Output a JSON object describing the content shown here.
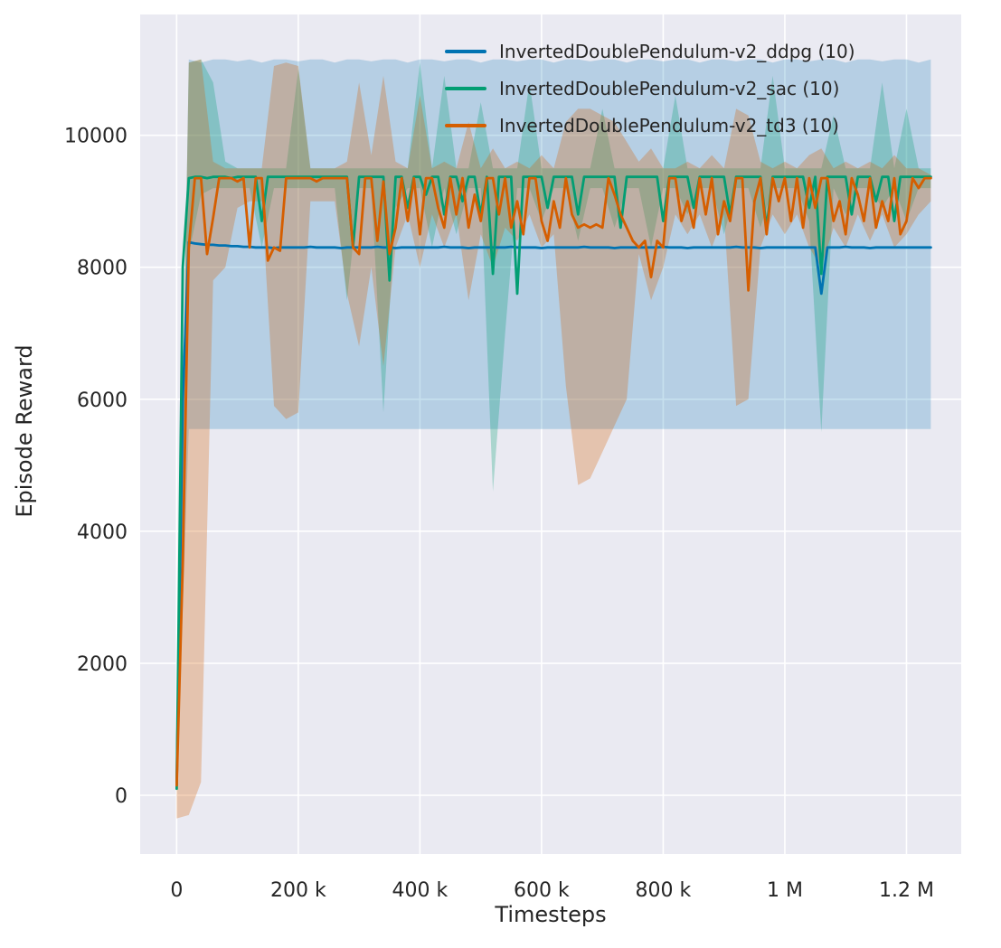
{
  "figure": {
    "background": "#ffffff",
    "plot_bg": "#eaeaf2",
    "grid_color": "#ffffff",
    "text_color": "#262626"
  },
  "chart_data": {
    "type": "line",
    "title": "",
    "xlabel": "Timesteps",
    "ylabel": "Episode Reward",
    "grid": true,
    "legend_position": "upper center",
    "xlim": [
      -60000,
      1290000
    ],
    "ylim": [
      -890,
      11830
    ],
    "x_ticks": [
      {
        "v": 0,
        "label": "0"
      },
      {
        "v": 200000,
        "label": "200 k"
      },
      {
        "v": 400000,
        "label": "400 k"
      },
      {
        "v": 600000,
        "label": "600 k"
      },
      {
        "v": 800000,
        "label": "800 k"
      },
      {
        "v": 1000000,
        "label": "1 M"
      },
      {
        "v": 1200000,
        "label": "1.2 M"
      }
    ],
    "y_ticks": [
      {
        "v": 0,
        "label": "0"
      },
      {
        "v": 2000,
        "label": "2000"
      },
      {
        "v": 4000,
        "label": "4000"
      },
      {
        "v": 6000,
        "label": "6000"
      },
      {
        "v": 8000,
        "label": "8000"
      },
      {
        "v": 10000,
        "label": "10000"
      }
    ],
    "series": [
      {
        "name": "InvertedDoublePendulum-v2_ddpg (10)",
        "color": "#0173b2",
        "x0": 0,
        "dx": 10000,
        "values": [
          150,
          6000,
          8380,
          8360,
          8350,
          8340,
          8340,
          8330,
          8330,
          8320,
          8320,
          8310,
          8310,
          8300,
          8300,
          8300,
          8290,
          8300,
          8300,
          8300,
          8300,
          8300,
          8310,
          8300,
          8300,
          8300,
          8300,
          8290,
          8300,
          8300,
          8300,
          8300,
          8300,
          8310,
          8300,
          8300,
          8290,
          8300,
          8300,
          8300,
          8300,
          8300,
          8300,
          8300,
          8310,
          8300,
          8300,
          8300,
          8290,
          8300,
          8300,
          8300,
          8300,
          8300,
          8300,
          8310,
          8300,
          8300,
          8300,
          8300,
          8290,
          8300,
          8300,
          8300,
          8300,
          8300,
          8300,
          8310,
          8300,
          8300,
          8300,
          8300,
          8290,
          8300,
          8300,
          8300,
          8300,
          8300,
          8300,
          8300,
          8310,
          8300,
          8300,
          8300,
          8290,
          8300,
          8300,
          8300,
          8300,
          8300,
          8300,
          8300,
          8310,
          8300,
          8300,
          8300,
          8290,
          8300,
          8300,
          8300,
          8300,
          8300,
          8300,
          8300,
          8300,
          8300,
          7600,
          8300,
          8300,
          8300,
          8310,
          8300,
          8300,
          8300,
          8290,
          8300,
          8300,
          8300,
          8300,
          8300,
          8300,
          8300,
          8300,
          8300,
          8300
        ],
        "band": {
          "dx": 20000,
          "alpha": 0.22,
          "lo": [
            100,
            5550,
            5550,
            5550,
            5550,
            5550,
            5550,
            5550,
            5550,
            5550,
            5550,
            5550,
            5550,
            5550,
            5550,
            5550,
            5550,
            5550,
            5550,
            5550,
            5550,
            5550,
            5550,
            5550,
            5550,
            5550,
            5550,
            5550,
            5550,
            5550,
            5550,
            5550,
            5550,
            5550,
            5550,
            5550,
            5550,
            5550,
            5550,
            5550,
            5550,
            5550,
            5550,
            5550,
            5550,
            5550,
            5550,
            5550,
            5550,
            5550,
            5550,
            5550,
            5550,
            5550,
            5550,
            5550,
            5550,
            5550,
            5550,
            5550,
            5550,
            5550,
            5550
          ],
          "hi": [
            300,
            11150,
            11100,
            11150,
            11150,
            11120,
            11150,
            11100,
            11150,
            11150,
            11120,
            11150,
            11150,
            11100,
            11150,
            11150,
            11120,
            11150,
            11150,
            11100,
            11150,
            11150,
            11120,
            11150,
            11150,
            11100,
            11150,
            11150,
            11120,
            11150,
            11150,
            11100,
            11150,
            11150,
            11120,
            11150,
            11150,
            11100,
            11150,
            11150,
            11120,
            11150,
            11150,
            11100,
            11150,
            11150,
            11120,
            11150,
            11150,
            11100,
            11150,
            11150,
            11120,
            11150,
            11150,
            11100,
            11150,
            11150,
            11120,
            11150,
            11150,
            11100,
            11150
          ]
        }
      },
      {
        "name": "InvertedDoublePendulum-v2_sac (10)",
        "color": "#029e73",
        "x0": 0,
        "dx": 10000,
        "values": [
          100,
          8000,
          9350,
          9370,
          9370,
          9350,
          9370,
          9370,
          9370,
          9350,
          9370,
          9370,
          9370,
          9370,
          8700,
          9370,
          9370,
          9370,
          9370,
          9370,
          9370,
          9370,
          9370,
          9370,
          9370,
          9370,
          9370,
          9370,
          9370,
          8300,
          9370,
          9370,
          9370,
          9370,
          9370,
          7800,
          9370,
          9370,
          8900,
          9370,
          9370,
          9100,
          9370,
          9370,
          8800,
          9370,
          9370,
          9000,
          9370,
          9370,
          8800,
          9370,
          7900,
          9370,
          9370,
          9370,
          7600,
          9370,
          9370,
          9370,
          9370,
          8900,
          9370,
          9370,
          9370,
          9370,
          8800,
          9370,
          9370,
          9370,
          9370,
          9370,
          9370,
          8600,
          9370,
          9370,
          9370,
          9370,
          9370,
          9370,
          8700,
          9370,
          9370,
          9370,
          9370,
          8900,
          9370,
          9370,
          9370,
          9370,
          9370,
          8800,
          9370,
          9370,
          9370,
          9370,
          9370,
          8600,
          9370,
          9370,
          9370,
          9370,
          9370,
          9370,
          8900,
          9370,
          7900,
          9370,
          9370,
          9370,
          9370,
          8800,
          9370,
          9370,
          9370,
          9000,
          9370,
          9370,
          8700,
          9370,
          9370,
          9370,
          9370,
          9370,
          9370
        ],
        "band": {
          "dx": 20000,
          "alpha": 0.28,
          "lo": [
            80,
            8200,
            9100,
            9200,
            9200,
            9200,
            9200,
            8300,
            9200,
            9200,
            9200,
            9200,
            9200,
            9200,
            7500,
            9200,
            9200,
            5800,
            8900,
            9200,
            9200,
            8300,
            9200,
            8500,
            9200,
            9200,
            4600,
            7000,
            9200,
            9200,
            8700,
            9200,
            9200,
            8400,
            9200,
            9200,
            8600,
            9200,
            9200,
            8300,
            9200,
            9200,
            8800,
            9200,
            9200,
            8500,
            9200,
            9200,
            8600,
            9200,
            9200,
            9200,
            8700,
            5500,
            9200,
            8800,
            9200,
            9200,
            8900,
            9200,
            8700,
            9200,
            9200
          ],
          "hi": [
            150,
            11100,
            11150,
            10800,
            9600,
            9500,
            9500,
            9500,
            9500,
            9500,
            11000,
            9500,
            9500,
            9500,
            9500,
            9500,
            9500,
            9500,
            9500,
            9500,
            11100,
            9500,
            10900,
            9500,
            9500,
            10500,
            9500,
            9500,
            9500,
            10800,
            9500,
            9500,
            9500,
            9500,
            9500,
            10400,
            9500,
            9500,
            9500,
            9500,
            9500,
            10600,
            9500,
            9500,
            9500,
            9500,
            9500,
            9500,
            9500,
            10900,
            9500,
            9500,
            9500,
            9500,
            10300,
            9500,
            9500,
            9500,
            10800,
            9500,
            10400,
            9500,
            9500
          ]
        }
      },
      {
        "name": "InvertedDoublePendulum-v2_td3 (10)",
        "color": "#d55e00",
        "x0": 0,
        "dx": 10000,
        "values": [
          150,
          3500,
          8300,
          9350,
          9350,
          8200,
          8750,
          9350,
          9350,
          9350,
          9300,
          9350,
          8300,
          9350,
          9350,
          8100,
          8300,
          8250,
          9350,
          9350,
          9350,
          9350,
          9350,
          9300,
          9350,
          9350,
          9350,
          9350,
          9350,
          8300,
          8200,
          9350,
          9350,
          8400,
          9300,
          8200,
          8600,
          9350,
          8700,
          9350,
          8500,
          9350,
          9350,
          8900,
          8600,
          9350,
          8800,
          9350,
          8600,
          9100,
          8700,
          9350,
          9350,
          8800,
          9350,
          8600,
          9000,
          8500,
          9350,
          9350,
          8700,
          8400,
          9000,
          8600,
          9350,
          8800,
          8600,
          8650,
          8600,
          8650,
          8600,
          9350,
          9100,
          8800,
          8600,
          8400,
          8300,
          8400,
          7850,
          8400,
          8300,
          9350,
          9350,
          8700,
          9000,
          8600,
          9350,
          8800,
          9350,
          8500,
          9000,
          8700,
          9350,
          9350,
          7650,
          9000,
          9350,
          8500,
          9350,
          9000,
          9350,
          8700,
          9350,
          8600,
          9350,
          8900,
          9350,
          9350,
          8700,
          9000,
          8500,
          9350,
          9100,
          8700,
          9350,
          8600,
          9000,
          8700,
          9350,
          8500,
          8700,
          9350,
          9200,
          9350,
          9350
        ],
        "band": {
          "dx": 20000,
          "alpha": 0.28,
          "lo": [
            -350,
            -300,
            200,
            7800,
            8000,
            8900,
            9000,
            9000,
            5900,
            5700,
            5800,
            9000,
            9000,
            9000,
            7600,
            6800,
            8000,
            6500,
            8300,
            8800,
            8000,
            8800,
            8300,
            8800,
            7500,
            8500,
            8000,
            8600,
            8400,
            8800,
            8300,
            8500,
            6200,
            4700,
            4800,
            5200,
            5600,
            6000,
            8200,
            7500,
            8000,
            8800,
            8500,
            8800,
            8300,
            8800,
            5900,
            6000,
            8300,
            8800,
            8500,
            8800,
            8300,
            8000,
            8600,
            8300,
            8800,
            8400,
            8800,
            8300,
            8500,
            8800,
            9000
          ],
          "hi": [
            400,
            11100,
            11150,
            9600,
            9500,
            9500,
            9500,
            9500,
            11050,
            11100,
            11050,
            9500,
            9500,
            9500,
            9600,
            10800,
            9700,
            10900,
            9600,
            9500,
            10600,
            9500,
            9600,
            9500,
            10200,
            9500,
            9800,
            9500,
            9600,
            9500,
            9700,
            9500,
            10200,
            10400,
            10400,
            10300,
            10200,
            9900,
            9600,
            9800,
            9500,
            9500,
            9600,
            9500,
            9700,
            9500,
            10400,
            10300,
            9600,
            9500,
            9600,
            9500,
            9700,
            9800,
            9500,
            9600,
            9500,
            9600,
            9500,
            9700,
            9500,
            9500,
            9400
          ]
        }
      }
    ]
  }
}
